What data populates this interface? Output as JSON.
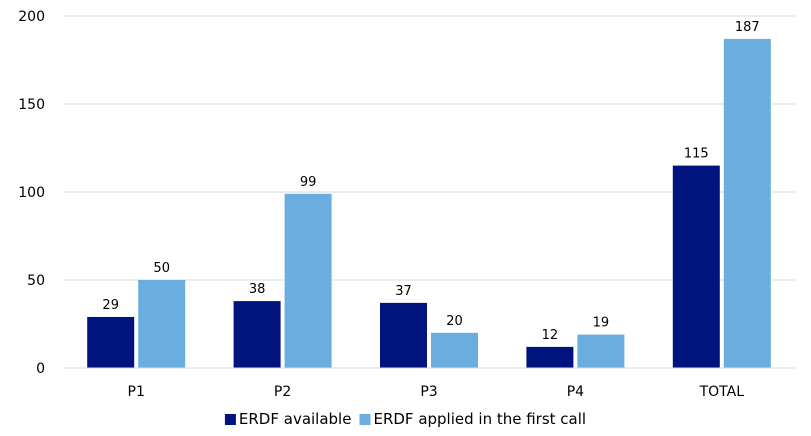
{
  "chart_data": {
    "type": "bar",
    "categories": [
      "P1",
      "P2",
      "P3",
      "P4",
      "TOTAL"
    ],
    "series": [
      {
        "name": "ERDF available",
        "values": [
          29,
          38,
          37,
          12,
          115
        ],
        "color": "#00137f"
      },
      {
        "name": "ERDF applied in the first call",
        "values": [
          50,
          99,
          20,
          19,
          187
        ],
        "color": "#6aaee0"
      }
    ],
    "y_ticks": [
      0,
      50,
      100,
      150,
      200
    ],
    "ylim": [
      0,
      200
    ],
    "grid": true,
    "grid_color": "#d9d9d9",
    "legend_position": "bottom-center",
    "title": "",
    "xlabel": "",
    "ylabel": ""
  }
}
